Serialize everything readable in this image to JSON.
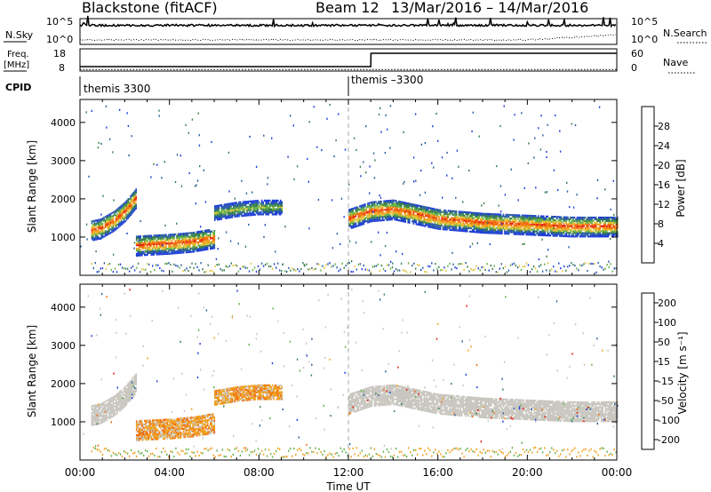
{
  "header": {
    "title": "Blackstone (fitACF)",
    "beam": "Beam 12",
    "dates": "13/Mar/2016 – 14/Mar/2016"
  },
  "colors": {
    "power": [
      "#1f3fd9",
      "#2a5ea0",
      "#3a7f4a",
      "#62b04a",
      "#e0c53a",
      "#f0a020",
      "#f06a10",
      "#e61c10"
    ],
    "velocity": [
      "#1f3fd9",
      "#2a5ea0",
      "#3a7f4a",
      "#62b04a",
      "#c8c8c8",
      "#f0a020",
      "#f06a10",
      "#e61c10"
    ],
    "gray_scatter": "#c8c6bf",
    "background": "#ffffff"
  },
  "panels": {
    "nsky": {
      "left_label": "N.Sky",
      "right_label": "N.Search",
      "left_ticks": [
        "10^5",
        "10^0"
      ],
      "right_ticks": [
        "10^5",
        "10^0"
      ]
    },
    "freq": {
      "left_label_top": "Freq.",
      "left_label_bottom": "[MHz]",
      "right_label": "Nave",
      "left_ticks": [
        "18",
        "8"
      ],
      "right_ticks": [
        "60",
        "0"
      ]
    },
    "cpid": {
      "label": "CPID",
      "segments": [
        {
          "label": "themis 3300",
          "start_hour": 0
        },
        {
          "label": "themis –3300",
          "start_hour": 12
        }
      ]
    }
  },
  "axes": {
    "ylabel": "Slant Range [km]",
    "xlabel": "Time UT",
    "yticks": [
      "1000",
      "2000",
      "3000",
      "4000"
    ],
    "xticks": [
      "00:00",
      "04:00",
      "08:00",
      "12:00",
      "16:00",
      "20:00",
      "00:00"
    ]
  },
  "colorbars": {
    "power": {
      "label": "Power [dB]",
      "ticks": [
        "4",
        "8",
        "12",
        "16",
        "20",
        "24",
        "28"
      ]
    },
    "velocity": {
      "label": "Velocity [m s⁻¹]",
      "ticks": [
        "200",
        "100",
        "50",
        "15",
        "-15",
        "-50",
        "-100",
        "-200"
      ]
    }
  },
  "chart_data": [
    {
      "type": "heatmap",
      "title": "",
      "xlabel": "Time UT",
      "ylabel": "Slant Range [km]",
      "xlim": [
        0,
        24
      ],
      "ylim": [
        0,
        4600
      ],
      "value": "Power [dB]",
      "colorscale_ticks": [
        4,
        8,
        12,
        16,
        20,
        24,
        28
      ],
      "features": [
        {
          "desc": "echo band",
          "x": [
            0.5,
            0.9,
            1.5,
            2.0,
            2.5
          ],
          "y": [
            1200,
            1250,
            1450,
            1700,
            2050
          ],
          "peak_power": 28
        },
        {
          "desc": "echo band",
          "x": [
            2.5,
            3.0,
            4.0,
            5.0,
            6.0
          ],
          "y": [
            800,
            820,
            850,
            900,
            1000
          ],
          "peak_power": 28
        },
        {
          "desc": "echo band",
          "x": [
            6.0,
            7.0,
            8.0,
            9.0
          ],
          "y": [
            1650,
            1750,
            1800,
            1800
          ],
          "peak_power": 16
        },
        {
          "desc": "echo band",
          "x": [
            12.0,
            13.0,
            14.0,
            16.0,
            18.0,
            20.0,
            22.0,
            24.0
          ],
          "y": [
            1500,
            1700,
            1750,
            1500,
            1400,
            1350,
            1300,
            1300
          ],
          "peak_power": 28
        }
      ]
    },
    {
      "type": "heatmap",
      "title": "",
      "xlabel": "Time UT",
      "ylabel": "Slant Range [km]",
      "xlim": [
        0,
        24
      ],
      "ylim": [
        0,
        4600
      ],
      "value": "Velocity [m s⁻¹]",
      "colorscale_ticks": [
        200,
        100,
        50,
        15,
        -15,
        -50,
        -100,
        -200
      ],
      "features": [
        {
          "desc": "ground scatter",
          "x": [
            0.2,
            3.0
          ],
          "y": [
            1300,
            1800
          ],
          "velocity": 0
        },
        {
          "desc": "negative velocity region",
          "x": [
            4.0,
            9.0
          ],
          "y": [
            1000,
            2100
          ],
          "velocity": -50
        },
        {
          "desc": "ground scatter",
          "x": [
            12.0,
            24.0
          ],
          "y": [
            1200,
            2100
          ],
          "velocity": 0
        }
      ]
    },
    {
      "type": "line",
      "title": "",
      "xlabel": "Time UT",
      "xlim": [
        0,
        24
      ],
      "series": [
        {
          "name": "Freq. [MHz]",
          "x": [
            0,
            13,
            13.01,
            24
          ],
          "values": [
            10,
            10,
            16,
            16
          ]
        },
        {
          "name": "Nave",
          "x": [
            0,
            24
          ],
          "values": [
            2,
            2
          ]
        }
      ]
    }
  ]
}
